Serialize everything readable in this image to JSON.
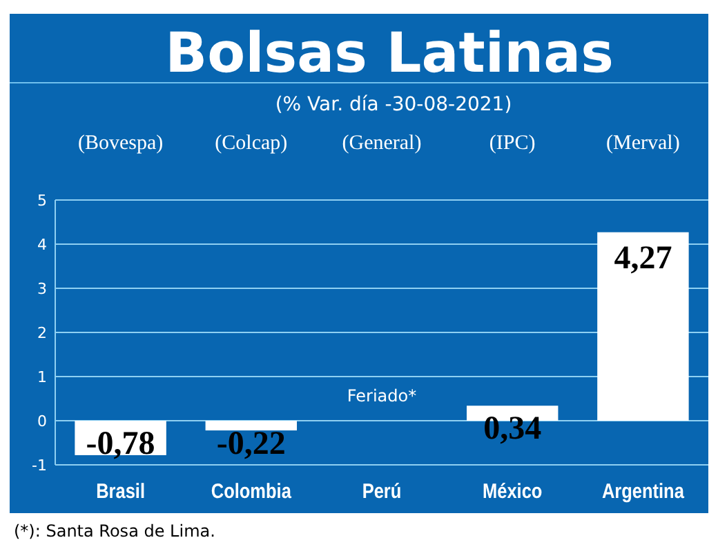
{
  "chart_data": {
    "type": "bar",
    "title": "Bolsas Latinas",
    "subtitle": "(% Var. día -30-08-2021)",
    "categories": [
      "Brasil",
      "Colombia",
      "Perú",
      "México",
      "Argentina"
    ],
    "values": [
      -0.78,
      -0.22,
      null,
      0.34,
      4.27
    ],
    "value_labels": [
      "-0,78",
      "-0,22",
      null,
      "0,34",
      "4,27"
    ],
    "color": "#ffffff",
    "ylim": [
      -1,
      5
    ],
    "yticks": [
      -1,
      0,
      1,
      2,
      3,
      4,
      5
    ],
    "grid": "y",
    "annotations": [
      "(Bovespa)",
      "(Colcap)",
      "(General)",
      "(IPC)",
      "(Merval)",
      "Feriado*",
      "(*): Santa Rosa de Lima."
    ]
  }
}
